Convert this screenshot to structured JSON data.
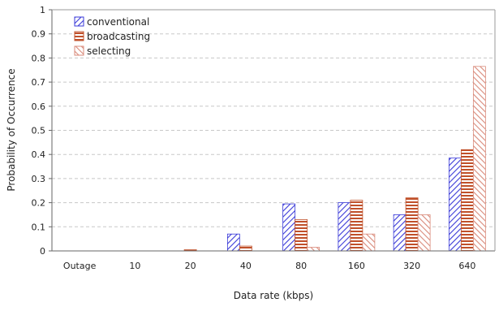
{
  "chart_data": {
    "type": "bar",
    "title": "",
    "xlabel": "Data rate (kbps)",
    "ylabel": "Probability of Occurrence",
    "ylim": [
      0,
      1
    ],
    "yticks": [
      0,
      0.1,
      0.2,
      0.3,
      0.4,
      0.5,
      0.6,
      0.7,
      0.8,
      0.9,
      1
    ],
    "ytick_labels": [
      "0",
      "0.1",
      "0.2",
      "0.3",
      "0.4",
      "0.5",
      "0.6",
      "0.7",
      "0.8",
      "0.9",
      "1"
    ],
    "categories": [
      "Outage",
      "10",
      "20",
      "40",
      "80",
      "160",
      "320",
      "640"
    ],
    "grid": "horizontal dashed",
    "legend_position": "top-left",
    "series": [
      {
        "name": "conventional",
        "values": [
          0,
          0,
          0,
          0.07,
          0.195,
          0.2,
          0.15,
          0.385
        ],
        "color": "#3a3ad8",
        "pattern": "diagonal"
      },
      {
        "name": "broadcasting",
        "values": [
          0,
          0,
          0.005,
          0.02,
          0.13,
          0.21,
          0.22,
          0.42
        ],
        "color": "#c0502a",
        "pattern": "horizontal"
      },
      {
        "name": "selecting",
        "values": [
          0,
          0,
          0,
          0,
          0.015,
          0.07,
          0.15,
          0.765
        ],
        "color": "#d98a7a",
        "pattern": "anti-diagonal"
      }
    ]
  }
}
